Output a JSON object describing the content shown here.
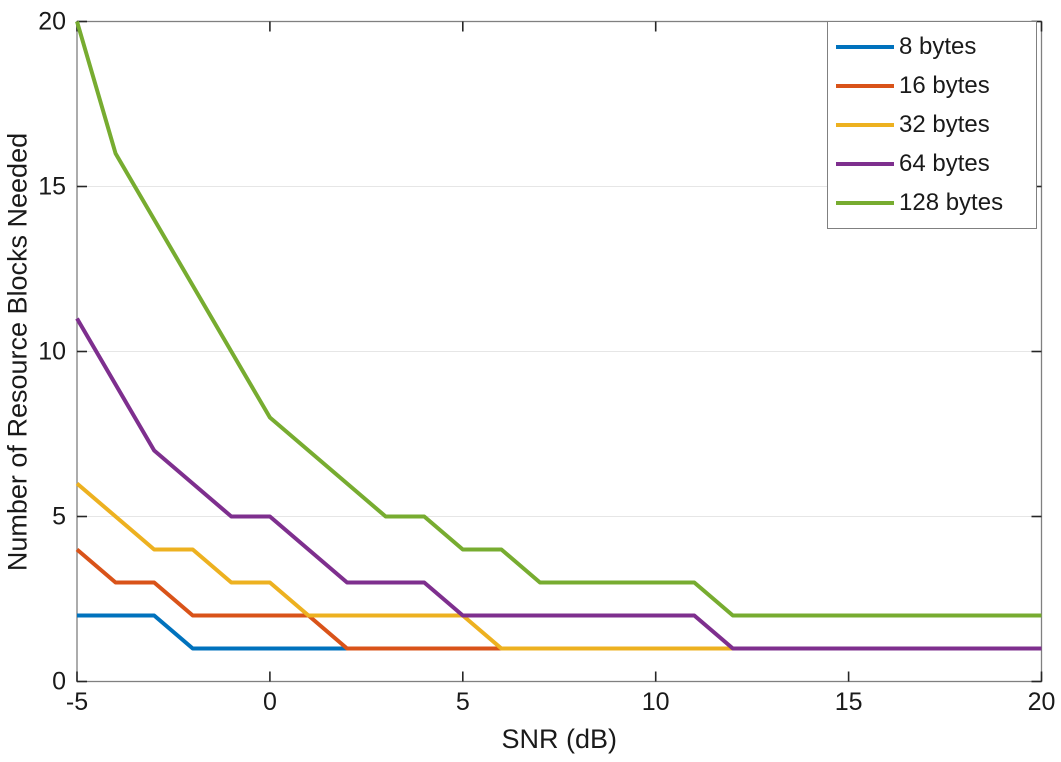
{
  "chart_data": {
    "type": "line",
    "title": "",
    "xlabel": "SNR (dB)",
    "ylabel": "Number of Resource Blocks Needed",
    "xlim": [
      -5,
      20
    ],
    "ylim": [
      0,
      20
    ],
    "xticks": [
      -5,
      0,
      5,
      10,
      15,
      20
    ],
    "yticks": [
      0,
      5,
      10,
      15,
      20
    ],
    "grid": "horizontal-only",
    "legend_position": "top-right-inside",
    "axis_box_color": "#808080",
    "tick_color": "#262626",
    "grid_color": "#e6e6e6",
    "x": [
      -5,
      -4,
      -3,
      -2,
      -1,
      0,
      1,
      2,
      3,
      4,
      5,
      6,
      7,
      8,
      9,
      10,
      11,
      12,
      13,
      14,
      15,
      16,
      17,
      18,
      19,
      20
    ],
    "series": [
      {
        "name": "8 bytes",
        "color": "#0072BD",
        "values": [
          2,
          2,
          2,
          1,
          1,
          1,
          1,
          1,
          1,
          1,
          1,
          1,
          1,
          1,
          1,
          1,
          1,
          1,
          1,
          1,
          1,
          1,
          1,
          1,
          1,
          1
        ]
      },
      {
        "name": "16 bytes",
        "color": "#D95319",
        "values": [
          4,
          3,
          3,
          2,
          2,
          2,
          2,
          1,
          1,
          1,
          1,
          1,
          1,
          1,
          1,
          1,
          1,
          1,
          1,
          1,
          1,
          1,
          1,
          1,
          1,
          1
        ]
      },
      {
        "name": "32 bytes",
        "color": "#EDB120",
        "values": [
          6,
          5,
          4,
          4,
          3,
          3,
          2,
          2,
          2,
          2,
          2,
          1,
          1,
          1,
          1,
          1,
          1,
          1,
          1,
          1,
          1,
          1,
          1,
          1,
          1,
          1
        ]
      },
      {
        "name": "64 bytes",
        "color": "#7E2F8E",
        "values": [
          11,
          9,
          7,
          6,
          5,
          5,
          4,
          3,
          3,
          3,
          2,
          2,
          2,
          2,
          2,
          2,
          2,
          1,
          1,
          1,
          1,
          1,
          1,
          1,
          1,
          1
        ]
      },
      {
        "name": "128 bytes",
        "color": "#77AC30",
        "values": [
          20,
          16,
          14,
          12,
          10,
          8,
          7,
          6,
          5,
          5,
          4,
          4,
          3,
          3,
          3,
          3,
          3,
          2,
          2,
          2,
          2,
          2,
          2,
          2,
          2,
          2
        ]
      }
    ]
  }
}
